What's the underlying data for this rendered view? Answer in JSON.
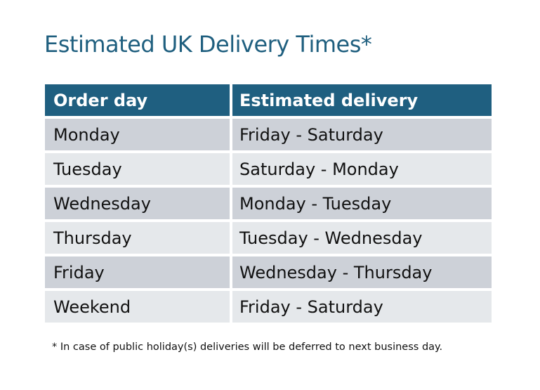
{
  "title": "Estimated UK Delivery Times*",
  "table": {
    "headers": [
      "Order day",
      "Estimated delivery"
    ],
    "rows": [
      [
        "Monday",
        "Friday - Saturday"
      ],
      [
        "Tuesday",
        "Saturday - Monday"
      ],
      [
        "Wednesday",
        "Monday - Tuesday"
      ],
      [
        "Thursday",
        "Tuesday - Wednesday"
      ],
      [
        "Friday",
        "Wednesday - Thursday"
      ],
      [
        "Weekend",
        "Friday - Saturday"
      ]
    ]
  },
  "footnote": "* In case of public holiday(s) deliveries will be deferred to next business day.",
  "colors": {
    "title": "#1f5f7f",
    "header_bg": "#1f5f80",
    "row_dark": "#cdd1d8",
    "row_light": "#e5e8eb"
  }
}
